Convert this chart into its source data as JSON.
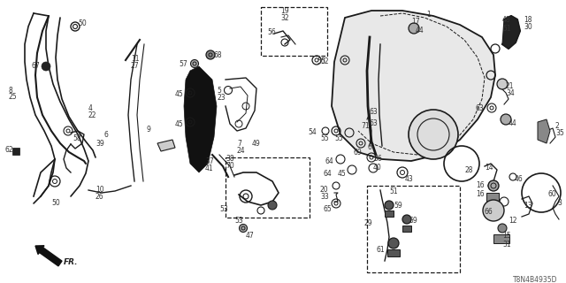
{
  "bg_color": "#ffffff",
  "line_color": "#1a1a1a",
  "label_color": "#333333",
  "diagram_id": "T8N4B4935D",
  "figsize": [
    6.4,
    3.2
  ],
  "dpi": 100
}
